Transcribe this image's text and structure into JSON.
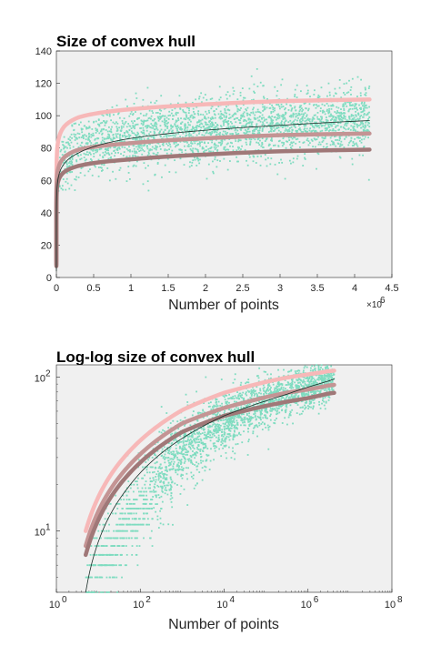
{
  "chart_data": [
    {
      "type": "scatter",
      "title": "Size of convex hull",
      "xlabel": "Number of points",
      "ylabel": "",
      "xscale": "linear",
      "yscale": "linear",
      "xlim": [
        0,
        4500000
      ],
      "ylim": [
        0,
        140
      ],
      "x_exponent_label": "×10",
      "x_exponent_power": "6",
      "xticks": [
        0,
        500000,
        1000000,
        1500000,
        2000000,
        2500000,
        3000000,
        3500000,
        4000000,
        4500000
      ],
      "xticklabels": [
        "0",
        "0.5",
        "1",
        "1.5",
        "2",
        "2.5",
        "3",
        "3.5",
        "4",
        "4.5"
      ],
      "yticks": [
        0,
        20,
        40,
        60,
        80,
        100,
        120,
        140
      ],
      "yticklabels": [
        "0",
        "20",
        "40",
        "60",
        "80",
        "100",
        "120",
        "140"
      ],
      "background": "#f0f0f0",
      "scatter_color": "#7fdcc0",
      "curves": [
        {
          "color": "#f7b8b8",
          "width": 4.5,
          "x": [
            5,
            50,
            1000,
            10000,
            100000,
            300000,
            1000000,
            2000000,
            3000000,
            4200000
          ],
          "y": [
            10,
            32,
            61,
            79,
            93,
            99,
            104,
            107,
            109,
            110
          ]
        },
        {
          "color": "#c49494",
          "width": 4.5,
          "x": [
            5,
            50,
            1000,
            10000,
            100000,
            300000,
            1000000,
            2000000,
            3000000,
            4200000
          ],
          "y": [
            8,
            26,
            50,
            63,
            74,
            79,
            83,
            86,
            88,
            89
          ]
        },
        {
          "color": "#a07878",
          "width": 4.5,
          "x": [
            5,
            50,
            1000,
            10000,
            100000,
            300000,
            1000000,
            2000000,
            3000000,
            4200000
          ],
          "y": [
            7,
            23,
            44,
            56,
            65,
            69,
            73,
            76,
            78,
            79
          ]
        },
        {
          "color": "#1a2e28",
          "width": 0.8,
          "x": [
            5,
            50,
            1000,
            10000,
            100000,
            300000,
            1000000,
            2000000,
            3000000,
            4200000
          ],
          "y": [
            4,
            19,
            40,
            56,
            70,
            77,
            86,
            91,
            94,
            97
          ]
        }
      ],
      "scatter_band": {
        "x_min": 30,
        "x_max": 4200000,
        "center_x": [
          30,
          1000,
          10000,
          100000,
          300000,
          1000000,
          2000000,
          3000000,
          4200000
        ],
        "center_y": [
          18,
          42,
          58,
          72,
          79,
          86,
          91,
          94,
          97
        ],
        "spread": [
          5,
          7,
          8,
          9,
          10,
          10,
          10,
          10,
          10
        ],
        "n": 2600
      }
    },
    {
      "type": "scatter",
      "title": "Log-log size of convex hull",
      "xlabel": "Number of points",
      "ylabel": "",
      "xscale": "log",
      "yscale": "log",
      "xlim": [
        1,
        100000000
      ],
      "ylim": [
        4,
        120
      ],
      "xticks": [
        1,
        100,
        10000,
        1000000,
        100000000
      ],
      "xtick_bases": [
        "10",
        "10",
        "10",
        "10",
        "10"
      ],
      "xtick_powers": [
        "0",
        "2",
        "4",
        "6",
        "8"
      ],
      "yticks": [
        10,
        100
      ],
      "ytick_bases": [
        "10",
        "10"
      ],
      "ytick_powers": [
        "1",
        "2"
      ],
      "background": "#f0f0f0",
      "scatter_color": "#7fdcc0",
      "curves": [
        {
          "color": "#f7b8b8",
          "width": 4.5,
          "x": [
            5,
            50,
            1000,
            10000,
            100000,
            300000,
            1000000,
            2000000,
            3000000,
            4200000
          ],
          "y": [
            10,
            32,
            61,
            79,
            93,
            99,
            104,
            107,
            109,
            110
          ]
        },
        {
          "color": "#c49494",
          "width": 4.5,
          "x": [
            5,
            50,
            1000,
            10000,
            100000,
            300000,
            1000000,
            2000000,
            3000000,
            4200000
          ],
          "y": [
            8,
            26,
            50,
            63,
            74,
            79,
            83,
            86,
            88,
            89
          ]
        },
        {
          "color": "#a07878",
          "width": 4.5,
          "x": [
            5,
            50,
            1000,
            10000,
            100000,
            300000,
            1000000,
            2000000,
            3000000,
            4200000
          ],
          "y": [
            7,
            23,
            44,
            56,
            65,
            69,
            73,
            76,
            78,
            79
          ]
        },
        {
          "color": "#1a2e28",
          "width": 0.8,
          "x": [
            5,
            50,
            1000,
            10000,
            100000,
            300000,
            1000000,
            2000000,
            3000000,
            4200000
          ],
          "y": [
            4,
            19,
            40,
            56,
            70,
            77,
            86,
            91,
            94,
            97
          ]
        }
      ],
      "scatter_band": {
        "x_min": 5,
        "x_max": 4200000,
        "center_x": [
          5,
          10,
          30,
          100,
          1000,
          10000,
          100000,
          1000000,
          4200000
        ],
        "center_y": [
          4.5,
          6,
          9,
          15,
          32,
          52,
          70,
          86,
          97
        ],
        "spread_log": [
          0.08,
          0.12,
          0.14,
          0.15,
          0.12,
          0.1,
          0.08,
          0.07,
          0.06
        ],
        "n": 2600
      }
    }
  ]
}
